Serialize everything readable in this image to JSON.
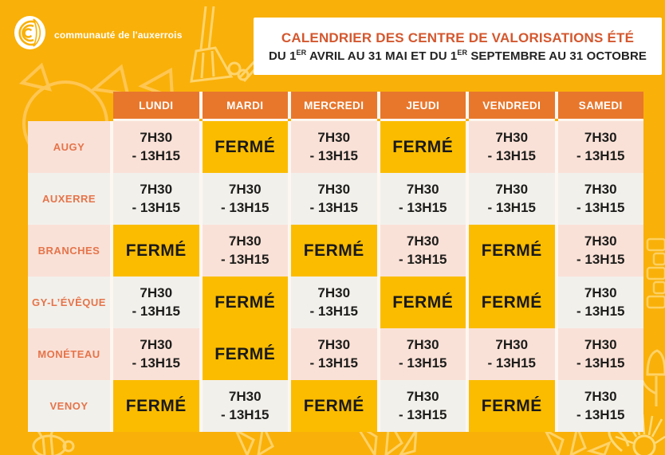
{
  "brand": {
    "name": "communauté de l'auxerrois"
  },
  "banner": {
    "title": "CALENDRIER DES CENTRE DE VALORISATIONS ÉTÉ",
    "subtitle": {
      "p1": "DU 1",
      "sup1": "ER",
      "p2": " AVRIL AU 31 MAI ET DU 1",
      "sup2": "ER",
      "p3": " SEPTEMBRE AU 31 OCTOBRE"
    }
  },
  "table": {
    "days": [
      "LUNDI",
      "MARDI",
      "MERCREDI",
      "JEUDI",
      "VENDREDI",
      "SAMEDI"
    ],
    "open_hours": {
      "line1": "7H30",
      "line2": "- 13H15"
    },
    "closed_label": "FERMÉ",
    "rows": [
      {
        "site": "AUGY",
        "cells": [
          "open",
          "closed",
          "open",
          "closed",
          "open",
          "open"
        ]
      },
      {
        "site": "AUXERRE",
        "cells": [
          "open",
          "open",
          "open",
          "open",
          "open",
          "open"
        ]
      },
      {
        "site": "BRANCHES",
        "cells": [
          "closed",
          "open",
          "closed",
          "open",
          "closed",
          "open"
        ]
      },
      {
        "site": "GY-L’ÉVÊQUE",
        "cells": [
          "open",
          "closed",
          "open",
          "closed",
          "closed",
          "open"
        ]
      },
      {
        "site": "MONÉTEAU",
        "cells": [
          "open",
          "closed",
          "open",
          "open",
          "open",
          "open"
        ]
      },
      {
        "site": "VENOY",
        "cells": [
          "closed",
          "open",
          "closed",
          "open",
          "closed",
          "open"
        ]
      }
    ]
  },
  "colors": {
    "background": "#F9B008",
    "header_cell": "#E8772C",
    "closed_cell": "#FBBC00",
    "row_pink": "#FAE1D7",
    "row_offwhite": "#F2F0EB",
    "title_text": "#D4572E",
    "site_text": "#E5744A",
    "gap": "#FDF7F1"
  },
  "decorations": [
    "sun-icon",
    "broom-icon",
    "bee-icon",
    "leaf-bouquet-icon",
    "flower-icon",
    "tulip-icon",
    "brick-wall-icon"
  ]
}
